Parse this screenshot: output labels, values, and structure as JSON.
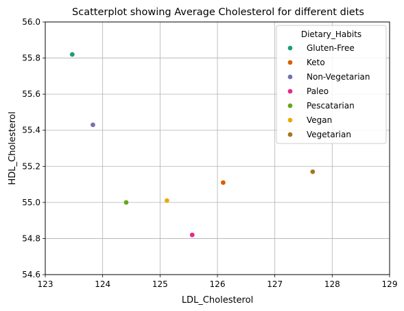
{
  "chart_data": {
    "type": "scatter",
    "title": "Scatterplot showing Average Cholesterol for different diets",
    "xlabel": "LDL_Cholesterol",
    "ylabel": "HDL_Cholesterol",
    "xlim": [
      123,
      129
    ],
    "ylim": [
      54.6,
      56.0
    ],
    "x_ticks": [
      "123",
      "124",
      "125",
      "126",
      "127",
      "128",
      "129"
    ],
    "y_ticks": [
      "54.6",
      "54.8",
      "55.0",
      "55.2",
      "55.4",
      "55.6",
      "55.8",
      "56.0"
    ],
    "grid": true,
    "legend": {
      "title": "Dietary_Habits",
      "placement": "top-right"
    },
    "series": [
      {
        "name": "Gluten-Free",
        "color": "#1b9e77",
        "x": 123.47,
        "y": 55.82
      },
      {
        "name": "Keto",
        "color": "#d95f02",
        "x": 126.1,
        "y": 55.11
      },
      {
        "name": "Non-Vegetarian",
        "color": "#7570b3",
        "x": 123.83,
        "y": 55.43
      },
      {
        "name": "Paleo",
        "color": "#e7298a",
        "x": 125.56,
        "y": 54.82
      },
      {
        "name": "Pescatarian",
        "color": "#66a61e",
        "x": 124.41,
        "y": 55.0
      },
      {
        "name": "Vegan",
        "color": "#e6ab02",
        "x": 125.12,
        "y": 55.01
      },
      {
        "name": "Vegetarian",
        "color": "#a6761d",
        "x": 127.66,
        "y": 55.17
      }
    ]
  }
}
